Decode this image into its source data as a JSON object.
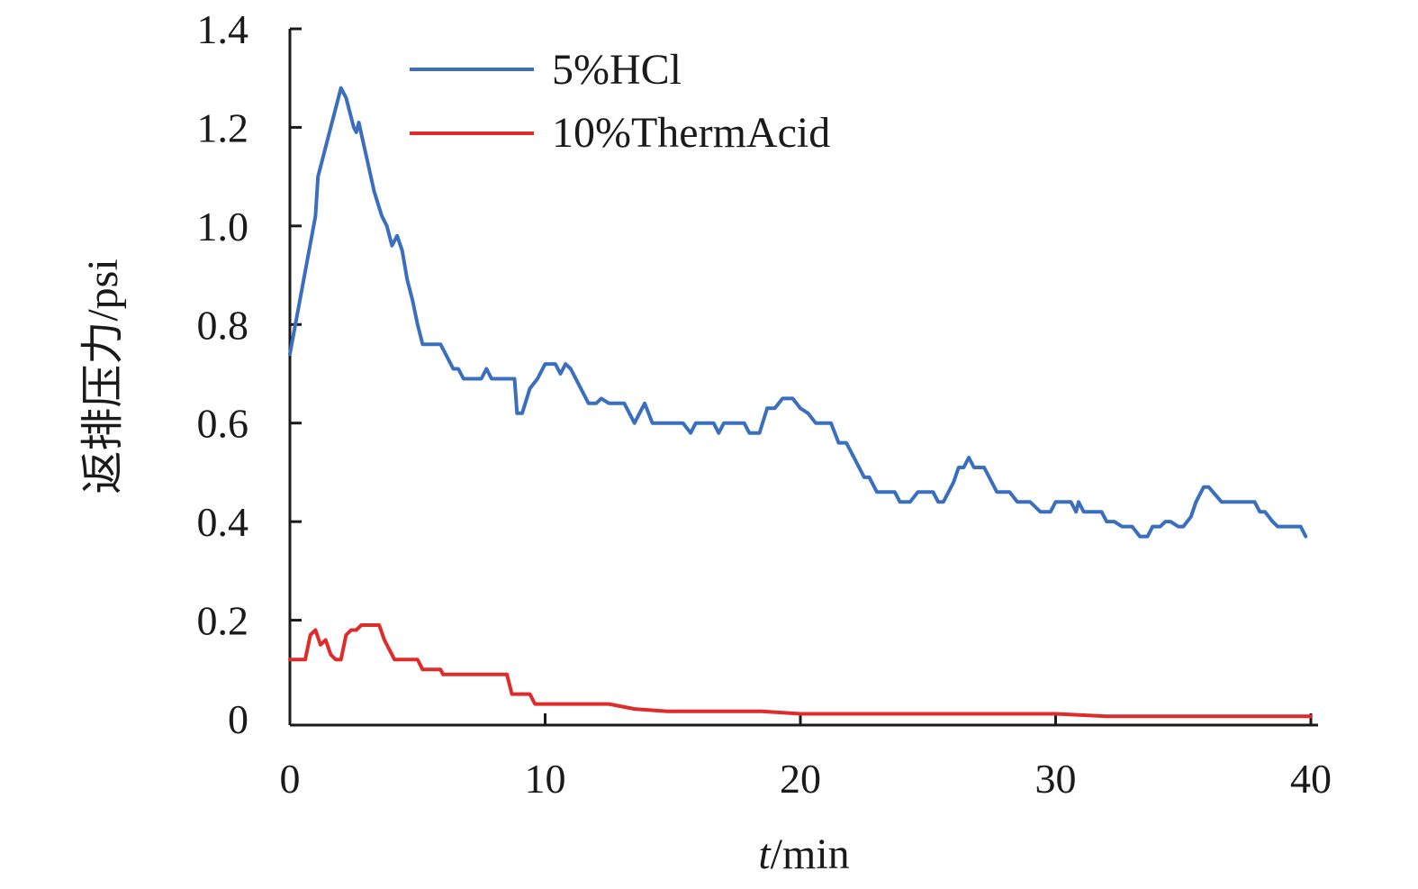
{
  "chart_data": {
    "type": "line",
    "title": "",
    "xlabel_italic": "t",
    "xlabel_rest": "/min",
    "ylabel": "返排压力/psi",
    "xlim": [
      0,
      40
    ],
    "ylim": [
      0,
      1.4
    ],
    "xticks": [
      0,
      10,
      20,
      30,
      40
    ],
    "xtick_labels": [
      "0",
      "10",
      "20",
      "30",
      "40"
    ],
    "yticks": [
      0,
      0.2,
      0.4,
      0.6,
      0.8,
      1.0,
      1.2,
      1.4
    ],
    "ytick_labels": [
      "0",
      "0.2",
      "0.4",
      "0.6",
      "0.8",
      "1.0",
      "1.2",
      "1.4"
    ],
    "grid": false,
    "legend_position": "top-left",
    "series": [
      {
        "name": "5%HCl",
        "color": "#3a6fbf",
        "points": [
          [
            0,
            0.74
          ],
          [
            0.5,
            0.88
          ],
          [
            1.0,
            1.02
          ],
          [
            1.1,
            1.1
          ],
          [
            1.5,
            1.18
          ],
          [
            2.0,
            1.28
          ],
          [
            2.2,
            1.26
          ],
          [
            2.5,
            1.2
          ],
          [
            2.6,
            1.19
          ],
          [
            2.7,
            1.21
          ],
          [
            3.0,
            1.14
          ],
          [
            3.3,
            1.07
          ],
          [
            3.6,
            1.02
          ],
          [
            3.8,
            1.0
          ],
          [
            4.0,
            0.96
          ],
          [
            4.2,
            0.98
          ],
          [
            4.4,
            0.95
          ],
          [
            4.6,
            0.89
          ],
          [
            4.8,
            0.85
          ],
          [
            5.0,
            0.8
          ],
          [
            5.2,
            0.76
          ],
          [
            5.9,
            0.76
          ],
          [
            6.2,
            0.73
          ],
          [
            6.4,
            0.71
          ],
          [
            6.6,
            0.71
          ],
          [
            6.8,
            0.69
          ],
          [
            7.5,
            0.69
          ],
          [
            7.7,
            0.71
          ],
          [
            7.9,
            0.69
          ],
          [
            8.8,
            0.69
          ],
          [
            8.9,
            0.62
          ],
          [
            9.1,
            0.62
          ],
          [
            9.4,
            0.67
          ],
          [
            9.7,
            0.69
          ],
          [
            10.0,
            0.72
          ],
          [
            10.4,
            0.72
          ],
          [
            10.6,
            0.7
          ],
          [
            10.8,
            0.72
          ],
          [
            11.0,
            0.71
          ],
          [
            11.4,
            0.67
          ],
          [
            11.7,
            0.64
          ],
          [
            12.0,
            0.64
          ],
          [
            12.2,
            0.65
          ],
          [
            12.5,
            0.64
          ],
          [
            13.1,
            0.64
          ],
          [
            13.5,
            0.6
          ],
          [
            13.9,
            0.64
          ],
          [
            14.2,
            0.6
          ],
          [
            15.0,
            0.6
          ],
          [
            15.4,
            0.6
          ],
          [
            15.7,
            0.58
          ],
          [
            15.9,
            0.6
          ],
          [
            16.6,
            0.6
          ],
          [
            16.8,
            0.58
          ],
          [
            17.0,
            0.6
          ],
          [
            17.8,
            0.6
          ],
          [
            18.0,
            0.58
          ],
          [
            18.4,
            0.58
          ],
          [
            18.7,
            0.63
          ],
          [
            19.0,
            0.63
          ],
          [
            19.3,
            0.65
          ],
          [
            19.7,
            0.65
          ],
          [
            20.0,
            0.63
          ],
          [
            20.3,
            0.62
          ],
          [
            20.6,
            0.6
          ],
          [
            21.2,
            0.6
          ],
          [
            21.5,
            0.56
          ],
          [
            21.8,
            0.56
          ],
          [
            22.2,
            0.52
          ],
          [
            22.5,
            0.49
          ],
          [
            22.7,
            0.49
          ],
          [
            23.0,
            0.46
          ],
          [
            23.7,
            0.46
          ],
          [
            23.9,
            0.44
          ],
          [
            24.3,
            0.44
          ],
          [
            24.6,
            0.46
          ],
          [
            25.2,
            0.46
          ],
          [
            25.4,
            0.44
          ],
          [
            25.6,
            0.44
          ],
          [
            26.0,
            0.48
          ],
          [
            26.2,
            0.51
          ],
          [
            26.4,
            0.51
          ],
          [
            26.6,
            0.53
          ],
          [
            26.8,
            0.51
          ],
          [
            27.2,
            0.51
          ],
          [
            27.7,
            0.46
          ],
          [
            28.2,
            0.46
          ],
          [
            28.5,
            0.44
          ],
          [
            29.0,
            0.44
          ],
          [
            29.4,
            0.42
          ],
          [
            29.8,
            0.42
          ],
          [
            30.0,
            0.44
          ],
          [
            30.6,
            0.44
          ],
          [
            30.8,
            0.42
          ],
          [
            30.9,
            0.44
          ],
          [
            31.1,
            0.42
          ],
          [
            31.8,
            0.42
          ],
          [
            32.0,
            0.4
          ],
          [
            32.3,
            0.4
          ],
          [
            32.6,
            0.39
          ],
          [
            33.0,
            0.39
          ],
          [
            33.3,
            0.37
          ],
          [
            33.6,
            0.37
          ],
          [
            33.8,
            0.39
          ],
          [
            34.1,
            0.39
          ],
          [
            34.3,
            0.4
          ],
          [
            34.5,
            0.4
          ],
          [
            34.8,
            0.39
          ],
          [
            35.0,
            0.39
          ],
          [
            35.3,
            0.41
          ],
          [
            35.5,
            0.44
          ],
          [
            35.8,
            0.47
          ],
          [
            36.0,
            0.47
          ],
          [
            36.5,
            0.44
          ],
          [
            37.8,
            0.44
          ],
          [
            38.0,
            0.42
          ],
          [
            38.2,
            0.42
          ],
          [
            38.5,
            0.4
          ],
          [
            38.7,
            0.39
          ],
          [
            39.6,
            0.39
          ],
          [
            39.8,
            0.37
          ]
        ]
      },
      {
        "name": "10%ThermAcid",
        "color": "#e02b2b",
        "points": [
          [
            0,
            0.12
          ],
          [
            0.6,
            0.12
          ],
          [
            0.8,
            0.17
          ],
          [
            1.0,
            0.18
          ],
          [
            1.2,
            0.15
          ],
          [
            1.4,
            0.16
          ],
          [
            1.6,
            0.13
          ],
          [
            1.8,
            0.12
          ],
          [
            2.0,
            0.12
          ],
          [
            2.2,
            0.17
          ],
          [
            2.4,
            0.18
          ],
          [
            2.6,
            0.18
          ],
          [
            2.8,
            0.19
          ],
          [
            3.5,
            0.19
          ],
          [
            3.7,
            0.16
          ],
          [
            3.9,
            0.14
          ],
          [
            4.1,
            0.12
          ],
          [
            5.0,
            0.12
          ],
          [
            5.2,
            0.1
          ],
          [
            5.9,
            0.1
          ],
          [
            6.0,
            0.09
          ],
          [
            8.5,
            0.09
          ],
          [
            8.7,
            0.05
          ],
          [
            9.4,
            0.05
          ],
          [
            9.6,
            0.03
          ],
          [
            12.5,
            0.03
          ],
          [
            13.5,
            0.02
          ],
          [
            14.8,
            0.015
          ],
          [
            18.5,
            0.015
          ],
          [
            20.0,
            0.01
          ],
          [
            21.0,
            0.01
          ],
          [
            30.0,
            0.01
          ],
          [
            32.0,
            0.005
          ],
          [
            40.0,
            0.005
          ]
        ]
      }
    ]
  }
}
